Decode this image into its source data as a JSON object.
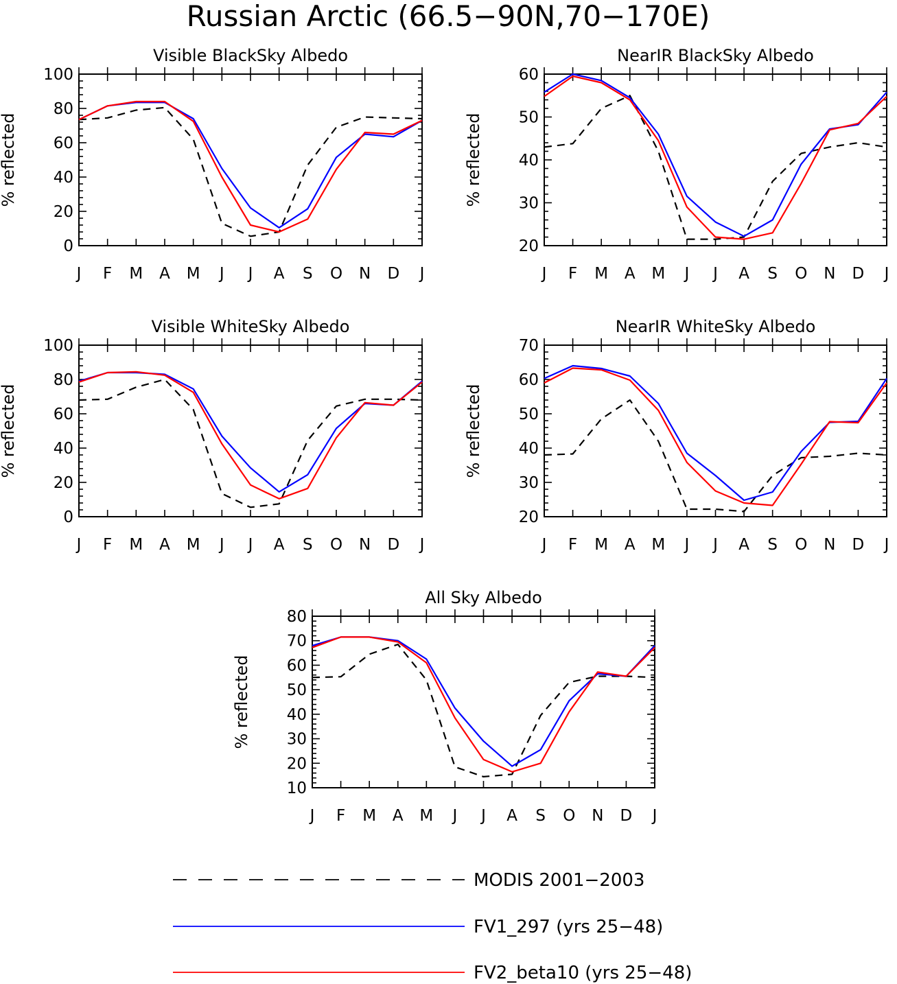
{
  "title": "Russian Arctic (66.5−90N,70−170E)",
  "colors": {
    "modis": "#000000",
    "fv1": "#0000ff",
    "fv2": "#ff0000"
  },
  "legend": [
    {
      "key": "modis",
      "label": "MODIS 2001−2003",
      "style": "dashed"
    },
    {
      "key": "fv1",
      "label": "FV1_297 (yrs 25−48)",
      "style": "solid"
    },
    {
      "key": "fv2",
      "label": "FV2_beta10 (yrs 25−48)",
      "style": "solid"
    }
  ],
  "chart_data": [
    {
      "type": "line",
      "title": "Visible BlackSky Albedo",
      "ylabel": "% reflected",
      "categories": [
        "J",
        "F",
        "M",
        "A",
        "M",
        "J",
        "J",
        "A",
        "S",
        "O",
        "N",
        "D",
        "J"
      ],
      "ylim": [
        0,
        100
      ],
      "yticks": [
        0,
        20,
        40,
        60,
        80,
        100
      ],
      "series": [
        {
          "key": "modis",
          "name": "MODIS 2001−2003",
          "values": [
            73.5,
            74.5,
            79,
            80.5,
            62,
            13,
            5.5,
            8,
            47,
            69,
            75,
            74.5,
            74
          ]
        },
        {
          "key": "fv1",
          "name": "FV1_297 (yrs 25−48)",
          "values": [
            73.5,
            81.5,
            83.5,
            83.5,
            74,
            45,
            22,
            10.5,
            21.5,
            51.5,
            65,
            63.5,
            73
          ]
        },
        {
          "key": "fv2",
          "name": "FV2_beta10 (yrs 25−48)",
          "values": [
            73.5,
            81.5,
            84,
            84,
            72.5,
            40,
            12,
            8,
            15.5,
            44.5,
            66,
            65,
            73
          ]
        }
      ]
    },
    {
      "type": "line",
      "title": "NearIR BlackSky Albedo",
      "ylabel": "% reflected",
      "categories": [
        "J",
        "F",
        "M",
        "A",
        "M",
        "J",
        "J",
        "A",
        "S",
        "O",
        "N",
        "D",
        "J"
      ],
      "ylim": [
        20,
        60
      ],
      "yticks": [
        20,
        30,
        40,
        50,
        60
      ],
      "series": [
        {
          "key": "modis",
          "name": "MODIS 2001−2003",
          "values": [
            43,
            43.8,
            52,
            55,
            42,
            21.5,
            21.5,
            22,
            35,
            41.5,
            43,
            44,
            43
          ]
        },
        {
          "key": "fv1",
          "name": "FV1_297 (yrs 25−48)",
          "values": [
            55.8,
            60,
            58.5,
            54.5,
            46,
            31.5,
            25.5,
            22.2,
            26,
            39,
            47.2,
            48.2,
            55.8
          ]
        },
        {
          "key": "fv2",
          "name": "FV2_beta10 (yrs 25−48)",
          "values": [
            54.8,
            59.5,
            58,
            54,
            44.5,
            29,
            22,
            21.5,
            23,
            34.5,
            47,
            48.5,
            54.8
          ]
        }
      ]
    },
    {
      "type": "line",
      "title": "Visible WhiteSky Albedo",
      "ylabel": "% reflected",
      "categories": [
        "J",
        "F",
        "M",
        "A",
        "M",
        "J",
        "J",
        "A",
        "S",
        "O",
        "N",
        "D",
        "J"
      ],
      "ylim": [
        0,
        100
      ],
      "yticks": [
        0,
        20,
        40,
        60,
        80,
        100
      ],
      "series": [
        {
          "key": "modis",
          "name": "MODIS 2001−2003",
          "values": [
            68,
            68.5,
            75.5,
            80,
            62.5,
            13.5,
            5.5,
            7.5,
            44.5,
            64.5,
            68.5,
            68.5,
            68
          ]
        },
        {
          "key": "fv1",
          "name": "FV1_297 (yrs 25−48)",
          "values": [
            79,
            84,
            84,
            83,
            74.5,
            47,
            28.5,
            14.5,
            24.5,
            51.5,
            66,
            65,
            79
          ]
        },
        {
          "key": "fv2",
          "name": "FV2_beta10 (yrs 25−48)",
          "values": [
            78.5,
            84,
            84.5,
            82.5,
            72.5,
            42.5,
            18.5,
            10.5,
            16.5,
            46,
            66.5,
            65,
            78.5
          ]
        }
      ]
    },
    {
      "type": "line",
      "title": "NearIR WhiteSky Albedo",
      "ylabel": "% reflected",
      "categories": [
        "J",
        "F",
        "M",
        "A",
        "M",
        "J",
        "J",
        "A",
        "S",
        "O",
        "N",
        "D",
        "J"
      ],
      "ylim": [
        20,
        70
      ],
      "yticks": [
        20,
        30,
        40,
        50,
        60,
        70
      ],
      "series": [
        {
          "key": "modis",
          "name": "MODIS 2001−2003",
          "values": [
            38,
            38.3,
            48.5,
            54,
            42,
            22.2,
            22.2,
            21.5,
            32,
            37.2,
            37.6,
            38.5,
            38
          ]
        },
        {
          "key": "fv1",
          "name": "FV1_297 (yrs 25−48)",
          "values": [
            60.3,
            64,
            63.2,
            61,
            53,
            38.5,
            32,
            24.8,
            27.2,
            39,
            47.5,
            47.8,
            60.3
          ]
        },
        {
          "key": "fv2",
          "name": "FV2_beta10 (yrs 25−48)",
          "values": [
            59,
            63.3,
            62.8,
            59.8,
            51,
            35.8,
            27.5,
            24,
            23.3,
            35.3,
            47.7,
            47.4,
            59
          ]
        }
      ]
    },
    {
      "type": "line",
      "title": "All Sky Albedo",
      "ylabel": "% reflected",
      "categories": [
        "J",
        "F",
        "M",
        "A",
        "M",
        "J",
        "J",
        "A",
        "S",
        "O",
        "N",
        "D",
        "J"
      ],
      "ylim": [
        10,
        80
      ],
      "yticks": [
        10,
        20,
        30,
        40,
        50,
        60,
        70,
        80
      ],
      "series": [
        {
          "key": "modis",
          "name": "MODIS 2001−2003",
          "values": [
            55,
            55.3,
            64.5,
            68.5,
            54,
            18.5,
            14.5,
            15.5,
            39.5,
            53,
            55.5,
            55.5,
            55
          ]
        },
        {
          "key": "fv1",
          "name": "FV1_297 (yrs 25−48)",
          "values": [
            68,
            71.5,
            71.5,
            70,
            62.5,
            42.5,
            29,
            18.8,
            25.5,
            45.5,
            56.5,
            55.5,
            68
          ]
        },
        {
          "key": "fv2",
          "name": "FV2_beta10 (yrs 25−48)",
          "values": [
            67.2,
            71.5,
            71.5,
            69.5,
            61,
            38.5,
            21.5,
            16.5,
            20,
            41,
            57.2,
            55.5,
            67.2
          ]
        }
      ]
    }
  ]
}
